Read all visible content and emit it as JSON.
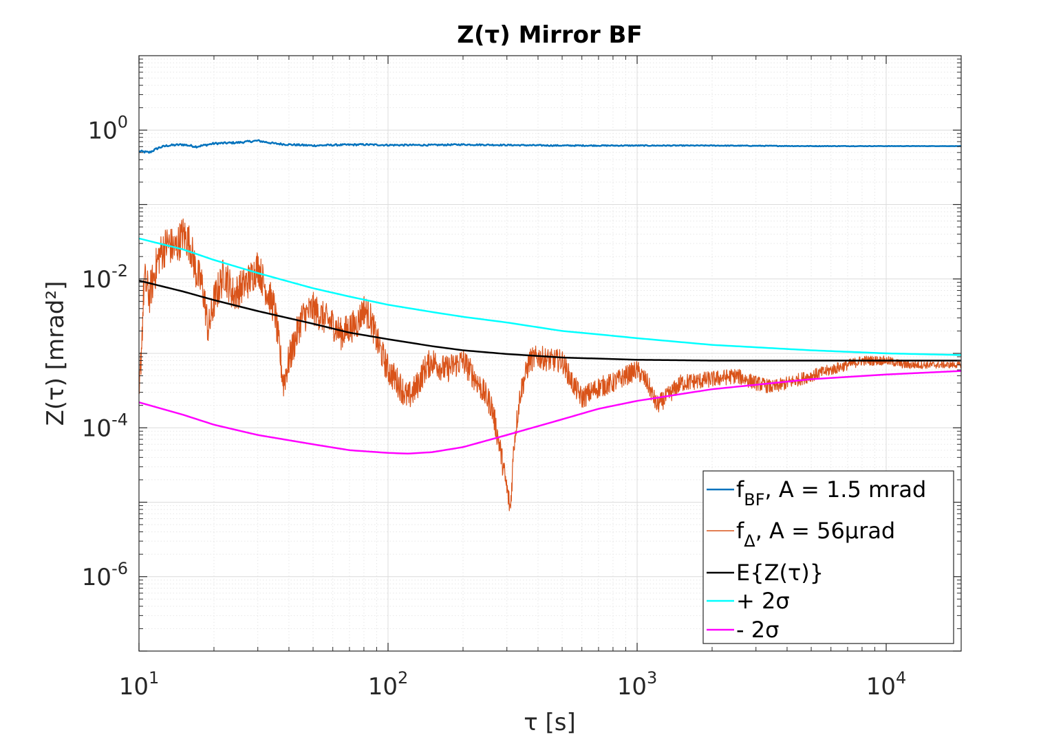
{
  "chart_data": {
    "type": "line",
    "title": "Z(τ) Mirror BF",
    "xlabel": "τ [s]",
    "ylabel": "Z(τ) [mrad²]",
    "xscale": "log",
    "yscale": "log",
    "xlim": [
      10,
      20000
    ],
    "ylim": [
      1e-07,
      10
    ],
    "grid": true,
    "minor_grid": true,
    "legend_position": "bottom-right",
    "xticks": [
      {
        "value": 10,
        "base": "10",
        "exp": "1"
      },
      {
        "value": 100,
        "base": "10",
        "exp": "2"
      },
      {
        "value": 1000,
        "base": "10",
        "exp": "3"
      },
      {
        "value": 10000,
        "base": "10",
        "exp": "4"
      }
    ],
    "yticks": [
      {
        "value": 1,
        "base": "10",
        "exp": "0"
      },
      {
        "value": 0.01,
        "base": "10",
        "exp": "-2"
      },
      {
        "value": 0.0001,
        "base": "10",
        "exp": "-4"
      },
      {
        "value": 1e-06,
        "base": "10",
        "exp": "-6"
      }
    ],
    "series": [
      {
        "name": "f_BF, A = 1.5 mrad",
        "legend_main": "f",
        "legend_sub": "BF",
        "legend_rest": ", A = 1.5 mrad",
        "color": "#0072BD",
        "stroke_width": 2.5,
        "noise": 0.03,
        "x": [
          10,
          11,
          12,
          13,
          15,
          17,
          20,
          25,
          30,
          35,
          40,
          50,
          60,
          80,
          100,
          150,
          200,
          300,
          500,
          1000,
          2000,
          5000,
          10000,
          20000
        ],
        "y": [
          0.52,
          0.5,
          0.58,
          0.62,
          0.64,
          0.6,
          0.66,
          0.68,
          0.72,
          0.66,
          0.64,
          0.62,
          0.63,
          0.64,
          0.63,
          0.63,
          0.64,
          0.63,
          0.62,
          0.62,
          0.62,
          0.61,
          0.61,
          0.61
        ]
      },
      {
        "name": "f_Δ, A = 56μrad",
        "legend_main": "f",
        "legend_sub": "Δ",
        "legend_rest": ", A = 56μrad",
        "color": "#D95319",
        "stroke_width": 1.2,
        "noise": 0.55,
        "x": [
          10,
          10.5,
          11,
          12,
          13,
          14,
          15,
          16,
          17,
          18,
          19,
          20,
          22,
          24,
          26,
          28,
          30,
          32,
          35,
          38,
          40,
          45,
          50,
          55,
          60,
          65,
          70,
          75,
          80,
          85,
          90,
          100,
          110,
          120,
          130,
          140,
          150,
          170,
          200,
          230,
          260,
          280,
          300,
          310,
          320,
          340,
          370,
          400,
          450,
          500,
          550,
          600,
          700,
          800,
          900,
          1000,
          1100,
          1200,
          1300,
          1500,
          2000,
          2500,
          3000,
          3500,
          4000,
          5000,
          6000,
          7000,
          8000,
          10000,
          12000,
          15000,
          20000
        ],
        "y": [
          0.0002,
          0.01,
          0.006,
          0.02,
          0.03,
          0.025,
          0.04,
          0.03,
          0.012,
          0.008,
          0.002,
          0.005,
          0.012,
          0.006,
          0.008,
          0.01,
          0.015,
          0.008,
          0.004,
          0.0004,
          0.0008,
          0.003,
          0.004,
          0.003,
          0.0025,
          0.0018,
          0.0022,
          0.0025,
          0.004,
          0.003,
          0.0015,
          0.0006,
          0.0004,
          0.00025,
          0.00035,
          0.0006,
          0.0008,
          0.0006,
          0.0008,
          0.0004,
          0.0002,
          6e-05,
          1.5e-05,
          8e-06,
          6e-05,
          0.0003,
          0.0008,
          0.0009,
          0.0008,
          0.0008,
          0.0004,
          0.00025,
          0.00035,
          0.0004,
          0.0005,
          0.0006,
          0.0004,
          0.0002,
          0.00025,
          0.0004,
          0.00045,
          0.0005,
          0.0004,
          0.00035,
          0.0004,
          0.0005,
          0.0006,
          0.0007,
          0.0008,
          0.0008,
          0.0007,
          0.0007,
          0.0007
        ]
      },
      {
        "name": "E{Z(τ)}",
        "legend_main": "E{Z(τ)}",
        "legend_sub": "",
        "legend_rest": "",
        "color": "#000000",
        "stroke_width": 2.5,
        "noise": 0,
        "x": [
          10,
          15,
          20,
          30,
          50,
          70,
          100,
          150,
          200,
          300,
          500,
          700,
          1000,
          2000,
          5000,
          10000,
          20000
        ],
        "y": [
          0.0095,
          0.0068,
          0.0052,
          0.0037,
          0.0025,
          0.0019,
          0.00155,
          0.00125,
          0.0011,
          0.00098,
          0.00088,
          0.00085,
          0.00082,
          0.0008,
          0.0008,
          0.0008,
          0.0008
        ]
      },
      {
        "name": "+ 2σ",
        "legend_main": "+ 2σ",
        "legend_sub": "",
        "legend_rest": "",
        "color": "#00FFFF",
        "stroke_width": 2.5,
        "noise": 0,
        "x": [
          10,
          15,
          20,
          30,
          50,
          70,
          100,
          150,
          200,
          300,
          500,
          700,
          1000,
          2000,
          5000,
          10000,
          20000
        ],
        "y": [
          0.035,
          0.025,
          0.018,
          0.012,
          0.0075,
          0.0058,
          0.0045,
          0.0036,
          0.0031,
          0.0026,
          0.002,
          0.0018,
          0.0016,
          0.0013,
          0.0011,
          0.001,
          0.00095
        ]
      },
      {
        "name": "- 2σ",
        "legend_main": "- 2σ",
        "legend_sub": "",
        "legend_rest": "",
        "color": "#FF00FF",
        "stroke_width": 2.5,
        "noise": 0,
        "x": [
          10,
          15,
          20,
          30,
          50,
          70,
          100,
          120,
          150,
          200,
          300,
          500,
          700,
          1000,
          2000,
          5000,
          10000,
          20000
        ],
        "y": [
          0.00022,
          0.00015,
          0.00011,
          8e-05,
          6e-05,
          5e-05,
          4.6e-05,
          4.5e-05,
          4.7e-05,
          5.5e-05,
          8e-05,
          0.00013,
          0.00018,
          0.00023,
          0.00033,
          0.00045,
          0.00052,
          0.00058
        ]
      }
    ]
  }
}
